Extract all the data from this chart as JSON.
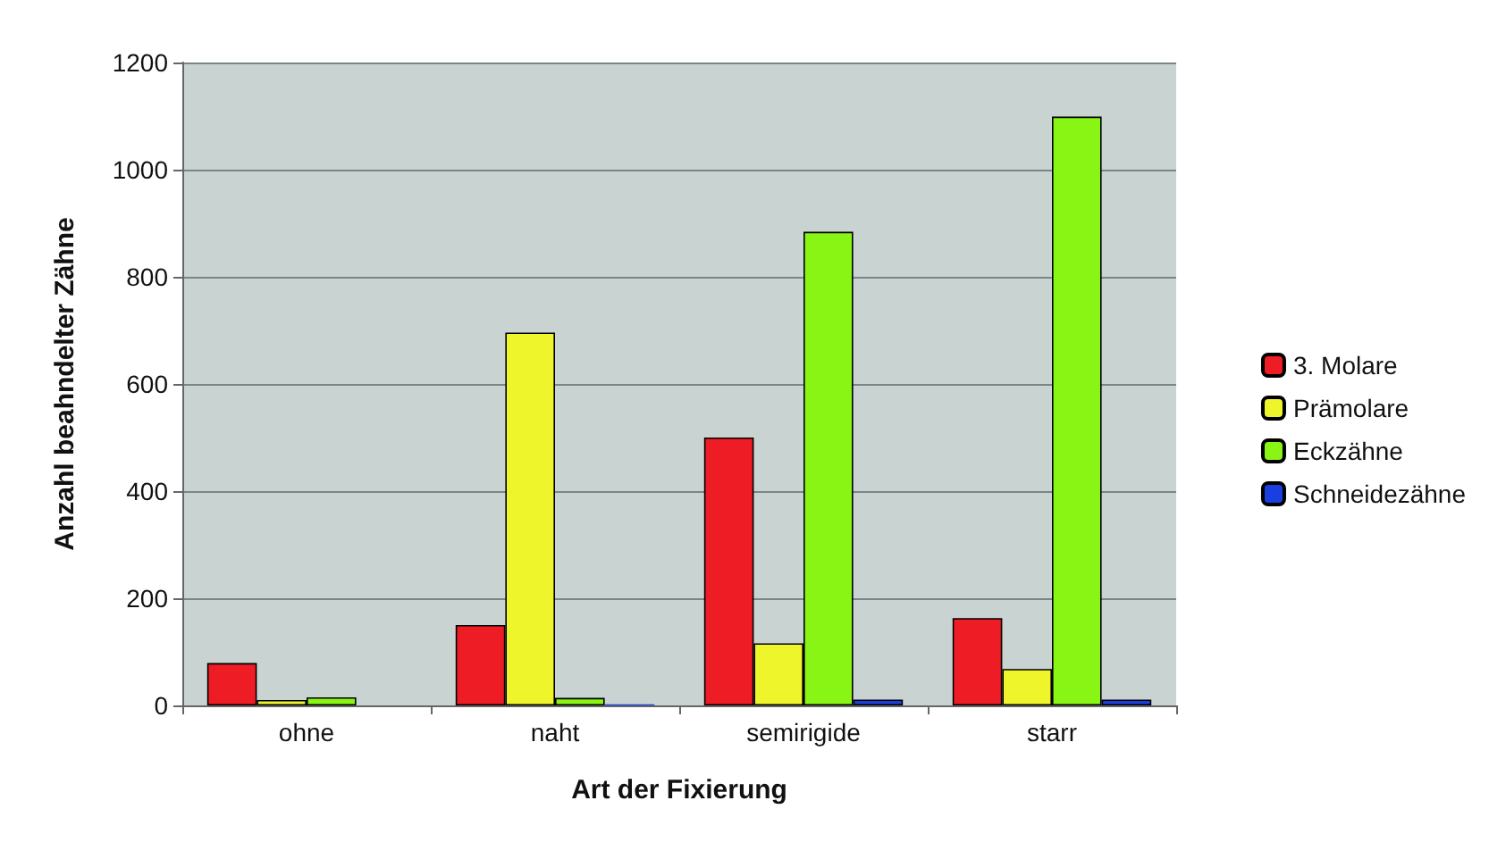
{
  "chart_data": {
    "type": "bar",
    "xlabel": "Art der Fixierung",
    "ylabel": "Anzahl beahndelter Zähne",
    "categories": [
      "ohne",
      "naht",
      "semirigide",
      "starr"
    ],
    "series": [
      {
        "name": "3. Molare",
        "color": "#ee1c25",
        "values": [
          79,
          150,
          500,
          163
        ]
      },
      {
        "name": "Prämolare",
        "color": "#eef52a",
        "values": [
          10,
          696,
          116,
          68
        ]
      },
      {
        "name": "Eckzähne",
        "color": "#88f514",
        "values": [
          15,
          14,
          884,
          1099
        ]
      },
      {
        "name": "Schneidezähne",
        "color": "#1a3fe0",
        "values": [
          null,
          2,
          11,
          11
        ]
      }
    ],
    "ylim": [
      0,
      1200
    ],
    "yticks": [
      0,
      200,
      400,
      600,
      800,
      1000,
      1200
    ],
    "grid": "y",
    "legend": "right"
  }
}
